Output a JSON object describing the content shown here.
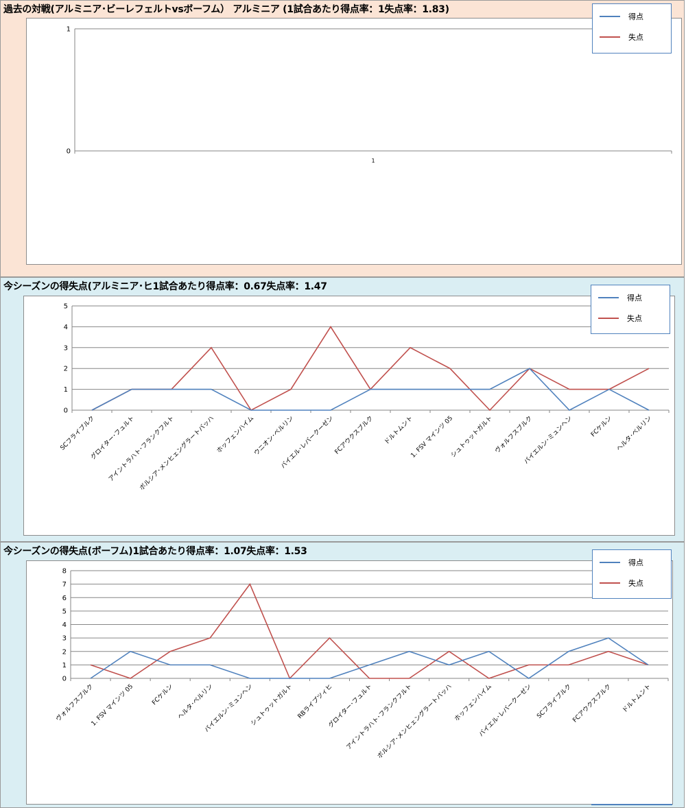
{
  "sections": [
    {
      "title": "過去の対戦(アルミニア･ビーレフェルトvsボーフム） アルミニア (1試合あたり得点率：1失点率：1.83)",
      "legend": [
        "得点",
        "失点"
      ]
    },
    {
      "title": "今シーズンの得失点(アルミニア･ヒ1試合あたり得点率：0.67失点率：1.47",
      "legend": [
        "得点",
        "失点"
      ]
    },
    {
      "title": "今シーズンの得失点(ボーフム)1試合あたり得点率：1.07失点率：1.53",
      "legend": [
        "得点",
        "失点"
      ]
    }
  ],
  "colors": {
    "scored": "#4f81bd",
    "conceded": "#c0504d",
    "grid": "#868686",
    "panel_bg_1": "#fbe4d5",
    "panel_bg_2": "#daeef3"
  },
  "chart_data": [
    {
      "type": "line",
      "categories": [
        "1"
      ],
      "series": [
        {
          "name": "得点",
          "values": [
            null
          ]
        },
        {
          "name": "失点",
          "values": [
            null
          ]
        }
      ],
      "yticks": [
        0,
        1
      ],
      "ylim": [
        0,
        1
      ],
      "legend": "top-right"
    },
    {
      "type": "line",
      "categories": [
        "SCフライブルク",
        "グロイター･フュルト",
        "アイントラハト･フランクフルト",
        "ボルシア･メンヒェングラートバッハ",
        "ホッフェンハイム",
        "ウニオン･ベルリン",
        "バイエル･レバークーゼン",
        "FCアウクスブルク",
        "ドルトムント",
        "1. FSV マインツ 05",
        "シュトゥットガルト",
        "ヴォルフスブルク",
        "バイエルン･ミュンヘン",
        "FCケルン",
        "ヘルタ･ベルリン"
      ],
      "series": [
        {
          "name": "得点",
          "values": [
            0,
            1,
            1,
            1,
            0,
            0,
            0,
            1,
            1,
            1,
            1,
            2,
            0,
            1,
            0
          ]
        },
        {
          "name": "失点",
          "values": [
            0,
            1,
            1,
            3,
            0,
            1,
            4,
            1,
            3,
            2,
            0,
            2,
            1,
            1,
            2
          ]
        }
      ],
      "yticks": [
        0,
        1,
        2,
        3,
        4,
        5
      ],
      "ylim": [
        0,
        5
      ],
      "legend": "top-right"
    },
    {
      "type": "line",
      "categories": [
        "ヴォルフスブルク",
        "1. FSV マインツ 05",
        "FCケルン",
        "ヘルタ･ベルリン",
        "バイエルン･ミュンヘン",
        "シュトゥットガルト",
        "RBライプツィヒ",
        "グロイター･フュルト",
        "アイントラハト･フランクフルト",
        "ボルシア･メンヒェングラートバッハ",
        "ホッフェンハイム",
        "バイエル･レバークーゼン",
        "SCフライブルク",
        "FCアウクスブルク",
        "ドルトムント"
      ],
      "series": [
        {
          "name": "得点",
          "values": [
            0,
            2,
            1,
            1,
            0,
            0,
            0,
            1,
            2,
            1,
            2,
            0,
            2,
            3,
            1
          ]
        },
        {
          "name": "失点",
          "values": [
            1,
            0,
            2,
            3,
            7,
            0,
            3,
            0,
            0,
            2,
            0,
            1,
            1,
            2,
            1
          ]
        }
      ],
      "yticks": [
        0,
        1,
        2,
        3,
        4,
        5,
        6,
        7,
        8
      ],
      "ylim": [
        0,
        8
      ],
      "legend": "top-right"
    }
  ]
}
